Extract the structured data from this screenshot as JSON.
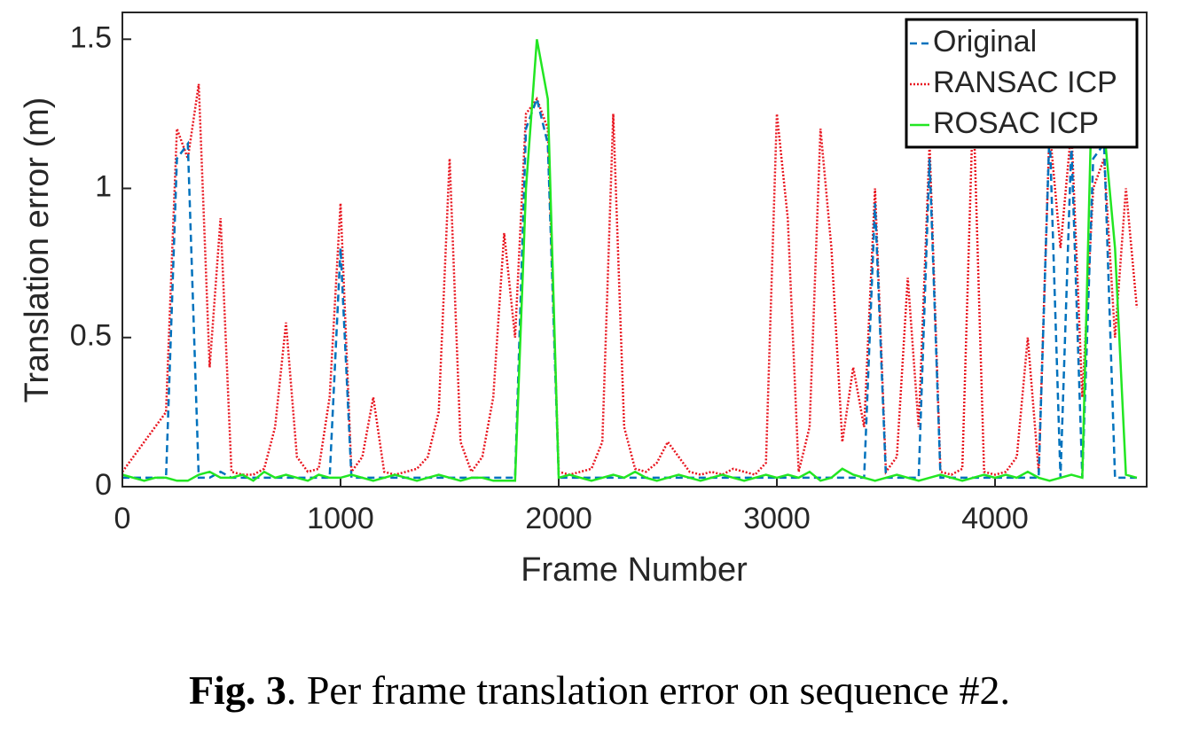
{
  "chart_data": {
    "type": "line",
    "xlabel": "Frame Number",
    "ylabel": "Translation error (m)",
    "caption_label": "Fig. 3",
    "caption_text": ". Per frame translation error on sequence #2.",
    "x": [
      0,
      50,
      100,
      150,
      200,
      250,
      300,
      350,
      400,
      450,
      500,
      550,
      600,
      650,
      700,
      750,
      800,
      850,
      900,
      950,
      1000,
      1050,
      1100,
      1150,
      1200,
      1250,
      1300,
      1350,
      1400,
      1450,
      1500,
      1550,
      1600,
      1650,
      1700,
      1750,
      1800,
      1850,
      1900,
      1950,
      2000,
      2050,
      2100,
      2150,
      2200,
      2250,
      2300,
      2350,
      2400,
      2450,
      2500,
      2550,
      2600,
      2650,
      2700,
      2750,
      2800,
      2850,
      2900,
      2950,
      3000,
      3050,
      3100,
      3150,
      3200,
      3250,
      3300,
      3350,
      3400,
      3450,
      3500,
      3550,
      3600,
      3650,
      3700,
      3750,
      3800,
      3850,
      3900,
      3950,
      4000,
      4050,
      4100,
      4150,
      4200,
      4250,
      4300,
      4350,
      4400,
      4450,
      4500,
      4550,
      4600,
      4650
    ],
    "series": [
      {
        "name": "Original",
        "color": "#0072bd",
        "dash": "dashed",
        "values": [
          0.03,
          0.03,
          0.03,
          0.03,
          0.03,
          1.1,
          1.15,
          0.03,
          0.03,
          0.05,
          0.03,
          0.03,
          0.03,
          0.03,
          0.03,
          0.03,
          0.03,
          0.03,
          0.03,
          0.03,
          0.8,
          0.03,
          0.03,
          0.03,
          0.03,
          0.03,
          0.03,
          0.03,
          0.03,
          0.03,
          0.03,
          0.03,
          0.03,
          0.03,
          0.03,
          0.03,
          0.03,
          1.2,
          1.3,
          1.15,
          0.03,
          0.03,
          0.03,
          0.03,
          0.03,
          0.03,
          0.03,
          0.03,
          0.03,
          0.03,
          0.03,
          0.03,
          0.03,
          0.03,
          0.03,
          0.03,
          0.03,
          0.03,
          0.03,
          0.03,
          0.03,
          0.03,
          0.03,
          0.03,
          0.03,
          0.03,
          0.03,
          0.03,
          0.03,
          0.95,
          0.03,
          0.03,
          0.03,
          0.03,
          1.1,
          0.03,
          0.03,
          0.03,
          0.03,
          0.03,
          0.03,
          0.03,
          0.03,
          0.03,
          0.03,
          1.2,
          0.03,
          1.15,
          0.03,
          1.1,
          1.15,
          0.03,
          0.03,
          0.03
        ]
      },
      {
        "name": "RANSAC ICP",
        "color": "#e8141e",
        "dash": "dotted",
        "values": [
          0.05,
          0.1,
          0.15,
          0.2,
          0.25,
          1.2,
          1.1,
          1.35,
          0.4,
          0.9,
          0.05,
          0.04,
          0.04,
          0.06,
          0.2,
          0.55,
          0.1,
          0.05,
          0.06,
          0.3,
          0.95,
          0.05,
          0.1,
          0.3,
          0.05,
          0.04,
          0.05,
          0.06,
          0.1,
          0.25,
          1.1,
          0.15,
          0.05,
          0.1,
          0.3,
          0.85,
          0.5,
          1.25,
          1.3,
          1.2,
          0.05,
          0.04,
          0.05,
          0.06,
          0.15,
          1.25,
          0.2,
          0.06,
          0.05,
          0.08,
          0.15,
          0.1,
          0.05,
          0.04,
          0.05,
          0.04,
          0.06,
          0.05,
          0.04,
          0.08,
          1.25,
          0.9,
          0.05,
          0.2,
          1.2,
          0.8,
          0.15,
          0.4,
          0.2,
          1.0,
          0.05,
          0.1,
          0.7,
          0.2,
          1.15,
          0.05,
          0.04,
          0.06,
          1.3,
          0.05,
          0.04,
          0.05,
          0.1,
          0.5,
          0.05,
          1.2,
          0.8,
          1.2,
          0.3,
          1.0,
          1.1,
          0.5,
          1.0,
          0.6
        ]
      },
      {
        "name": "ROSAC ICP",
        "color": "#22e622",
        "dash": "solid",
        "values": [
          0.04,
          0.03,
          0.02,
          0.03,
          0.03,
          0.02,
          0.02,
          0.04,
          0.05,
          0.03,
          0.03,
          0.04,
          0.02,
          0.05,
          0.03,
          0.04,
          0.03,
          0.02,
          0.04,
          0.03,
          0.03,
          0.04,
          0.03,
          0.02,
          0.03,
          0.04,
          0.03,
          0.02,
          0.03,
          0.04,
          0.03,
          0.02,
          0.03,
          0.03,
          0.02,
          0.02,
          0.02,
          1.0,
          1.5,
          1.3,
          0.03,
          0.04,
          0.03,
          0.02,
          0.03,
          0.04,
          0.03,
          0.05,
          0.03,
          0.02,
          0.03,
          0.04,
          0.03,
          0.02,
          0.03,
          0.04,
          0.03,
          0.02,
          0.03,
          0.04,
          0.03,
          0.04,
          0.03,
          0.05,
          0.02,
          0.03,
          0.06,
          0.04,
          0.03,
          0.02,
          0.03,
          0.04,
          0.03,
          0.02,
          0.03,
          0.04,
          0.03,
          0.02,
          0.03,
          0.04,
          0.03,
          0.04,
          0.03,
          0.05,
          0.03,
          0.02,
          0.03,
          0.04,
          0.03,
          1.5,
          1.2,
          0.8,
          0.04,
          0.03
        ]
      }
    ],
    "xlim": [
      0,
      4695
    ],
    "ylim": [
      0,
      1.59
    ],
    "xticks": [
      0,
      1000,
      2000,
      3000,
      4000
    ],
    "yticks": [
      0,
      0.5,
      {
        "value": 1,
        "label": "1"
      },
      1.5
    ],
    "legend": "upper right"
  }
}
